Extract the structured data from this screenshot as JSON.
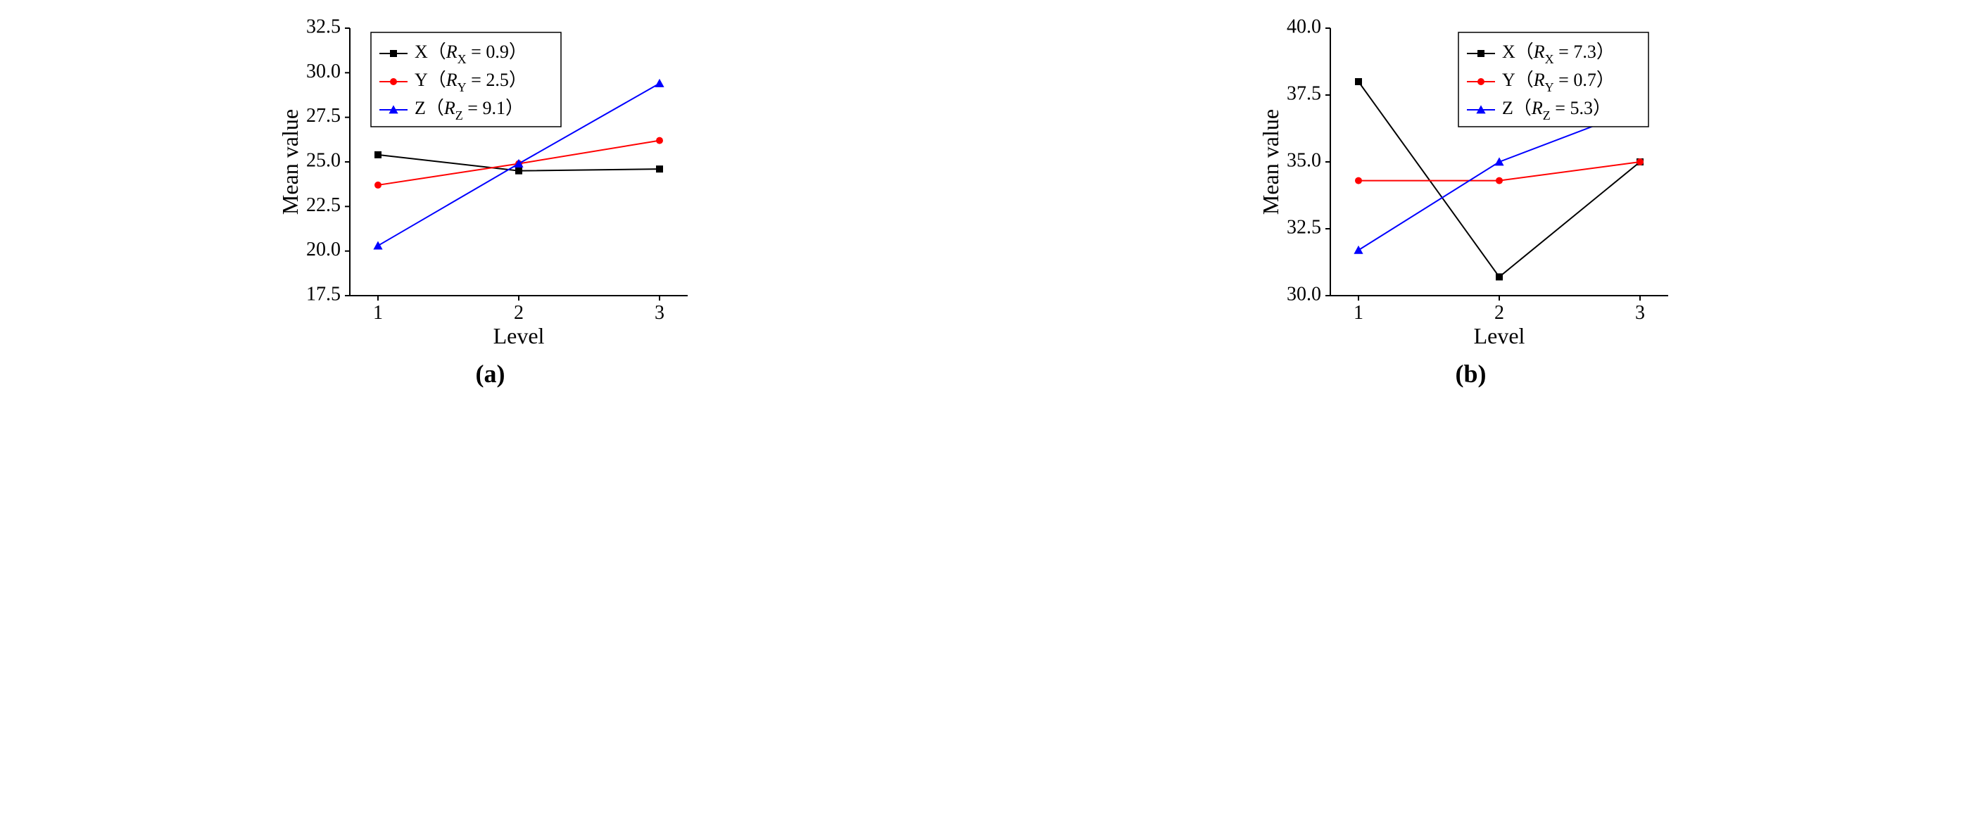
{
  "layout": {
    "panels": 2,
    "arrangement": "horizontal",
    "background_color": "#ffffff"
  },
  "typography": {
    "axis_label_fontsize": 32,
    "tick_fontsize": 28,
    "legend_fontsize": 26,
    "subplot_label_fontsize": 36,
    "font_family": "Times New Roman"
  },
  "colors": {
    "series_x": "#000000",
    "series_y": "#ff0000",
    "series_z": "#0000ff",
    "axis": "#000000",
    "legend_border": "#000000"
  },
  "charts": [
    {
      "id": "a",
      "type": "line",
      "subplot_label": "(a)",
      "xlabel": "Level",
      "ylabel": "Mean value",
      "xlim": [
        0.8,
        3.2
      ],
      "ylim": [
        17.5,
        32.5
      ],
      "xticks": [
        1,
        2,
        3
      ],
      "yticks": [
        17.5,
        20.0,
        22.5,
        25.0,
        27.5,
        30.0,
        32.5
      ],
      "ytick_labels": [
        "17.5",
        "20.0",
        "22.5",
        "25.0",
        "27.5",
        "30.0",
        "32.5"
      ],
      "legend_position": "top-left-inside",
      "series": [
        {
          "name": "X",
          "label_prefix": "X",
          "r_symbol": "R",
          "r_subscript": "X",
          "r_value": "0.9",
          "color": "#000000",
          "marker": "square",
          "marker_size": 10,
          "line_width": 2,
          "x": [
            1,
            2,
            3
          ],
          "y": [
            25.4,
            24.5,
            24.6
          ]
        },
        {
          "name": "Y",
          "label_prefix": "Y",
          "r_symbol": "R",
          "r_subscript": "Y",
          "r_value": "2.5",
          "color": "#ff0000",
          "marker": "circle",
          "marker_size": 10,
          "line_width": 2,
          "x": [
            1,
            2,
            3
          ],
          "y": [
            23.7,
            24.9,
            26.2
          ]
        },
        {
          "name": "Z",
          "label_prefix": "Z",
          "r_symbol": "R",
          "r_subscript": "Z",
          "r_value": "9.1",
          "color": "#0000ff",
          "marker": "triangle",
          "marker_size": 12,
          "line_width": 2,
          "x": [
            1,
            2,
            3
          ],
          "y": [
            20.3,
            24.9,
            29.4
          ]
        }
      ]
    },
    {
      "id": "b",
      "type": "line",
      "subplot_label": "(b)",
      "xlabel": "Level",
      "ylabel": "Mean value",
      "xlim": [
        0.8,
        3.2
      ],
      "ylim": [
        30.0,
        40.0
      ],
      "xticks": [
        1,
        2,
        3
      ],
      "yticks": [
        30.0,
        32.5,
        35.0,
        37.5,
        40.0
      ],
      "ytick_labels": [
        "30.0",
        "32.5",
        "35.0",
        "37.5",
        "40.0"
      ],
      "legend_position": "top-right-inside",
      "series": [
        {
          "name": "X",
          "label_prefix": "X",
          "r_symbol": "R",
          "r_subscript": "X",
          "r_value": "7.3",
          "color": "#000000",
          "marker": "square",
          "marker_size": 10,
          "line_width": 2,
          "x": [
            1,
            2,
            3
          ],
          "y": [
            38.0,
            30.7,
            35.0
          ]
        },
        {
          "name": "Y",
          "label_prefix": "Y",
          "r_symbol": "R",
          "r_subscript": "Y",
          "r_value": "0.7",
          "color": "#ff0000",
          "marker": "circle",
          "marker_size": 10,
          "line_width": 2,
          "x": [
            1,
            2,
            3
          ],
          "y": [
            34.3,
            34.3,
            35.0
          ]
        },
        {
          "name": "Z",
          "label_prefix": "Z",
          "r_symbol": "R",
          "r_subscript": "Z",
          "r_value": "5.3",
          "color": "#0000ff",
          "marker": "triangle",
          "marker_size": 12,
          "line_width": 2,
          "x": [
            1,
            2,
            3
          ],
          "y": [
            31.7,
            35.0,
            37.0
          ]
        }
      ]
    }
  ]
}
